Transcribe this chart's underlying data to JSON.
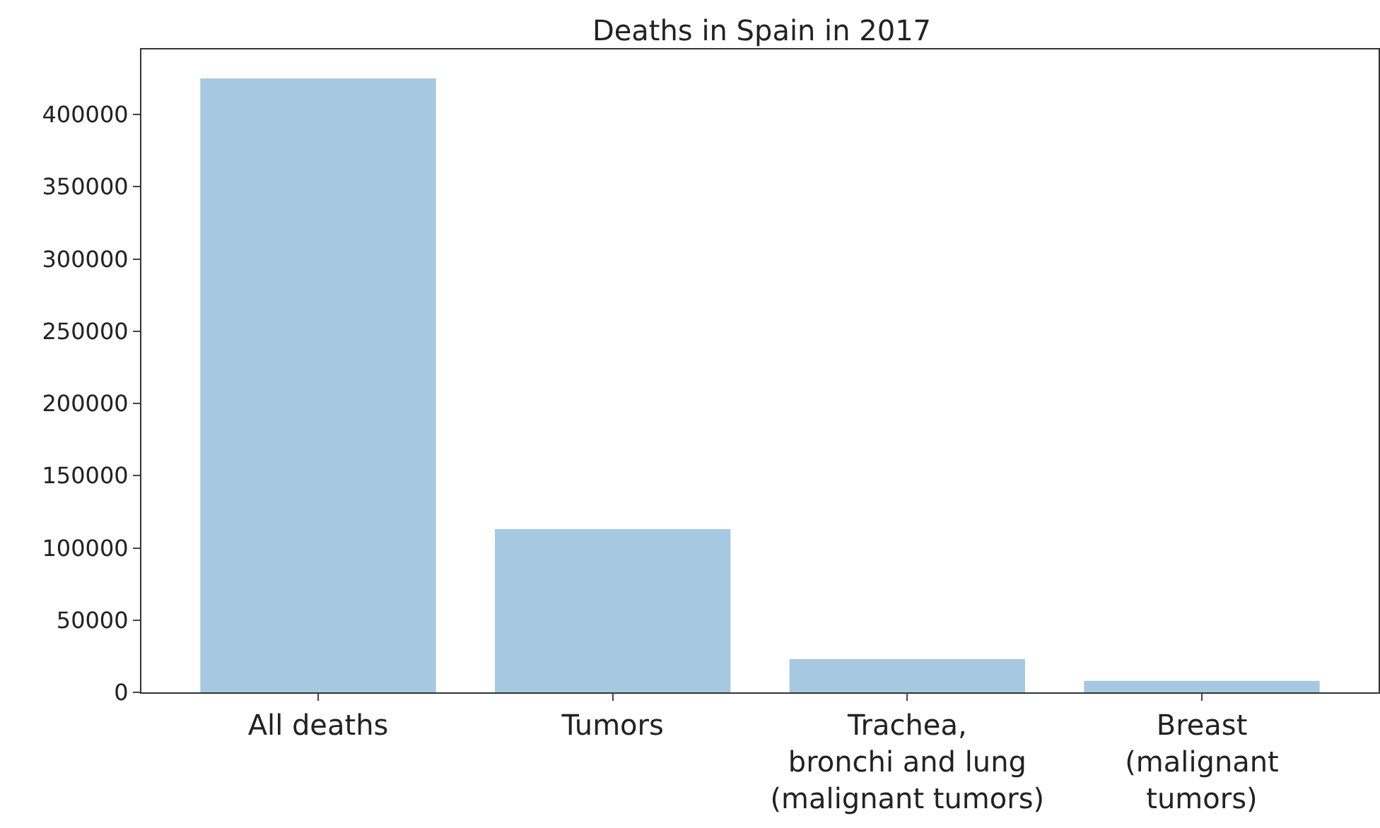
{
  "chart_data": {
    "type": "bar",
    "title": "Deaths in Spain in 2017",
    "categories": [
      "All deaths",
      "Tumors",
      "Trachea,\nbronchi and lung\n(malignant tumors)",
      "Breast\n(malignant\ntumors)"
    ],
    "values": [
      425000,
      113000,
      23000,
      8000
    ],
    "color": "#a6c8e1",
    "ylim": [
      0,
      445000
    ],
    "yticks": [
      0,
      50000,
      100000,
      150000,
      200000,
      250000,
      300000,
      350000,
      400000
    ]
  }
}
